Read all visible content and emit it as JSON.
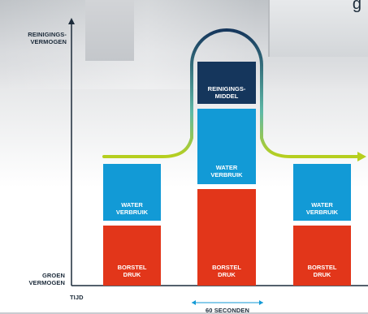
{
  "y_axis": {
    "top_label": "REINIGINGS-\nVERMOGEN",
    "bottom_label": "GROEN\nVERMOGEN"
  },
  "x_axis": {
    "label": "TIJD"
  },
  "duration_label": "60 SECONDEN",
  "corner_text": "g",
  "columns": [
    {
      "segments": [
        {
          "label": "BORSTEL\nDRUK",
          "color": "#e2361a"
        },
        {
          "label": "WATER\nVERBRUIK",
          "color": "#129ad6"
        }
      ]
    },
    {
      "segments": [
        {
          "label": "BORSTEL\nDRUK",
          "color": "#e2361a"
        },
        {
          "label": "WATER\nVERBRUIK",
          "color": "#129ad6"
        },
        {
          "label": "REINIGINGS-\nMIDDEL",
          "color": "#15365c"
        }
      ]
    },
    {
      "segments": [
        {
          "label": "BORSTEL\nDRUK",
          "color": "#e2361a"
        },
        {
          "label": "WATER\nVERBRUIK",
          "color": "#129ad6"
        }
      ]
    }
  ],
  "colors": {
    "axis": "#1c2b3a",
    "flow_green": "#b7cf1e",
    "flow_navy": "#15365c",
    "duration_arrow": "#129ad6"
  }
}
